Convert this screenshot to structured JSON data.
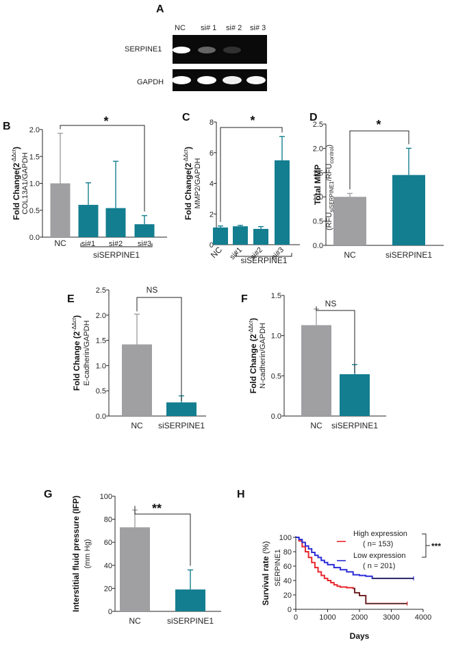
{
  "colors": {
    "gray": "#a0a0a3",
    "teal": "#137e8f",
    "red": "#e8252c",
    "blue": "#2a2ad8",
    "km_black": "#222222"
  },
  "panelA": {
    "label": "A",
    "lanes": [
      "NC",
      "si# 1",
      "si# 2",
      "si# 3"
    ],
    "rows": [
      "SERPINE1",
      "GAPDH"
    ],
    "band_intensity": {
      "SERPINE1": [
        1.0,
        0.55,
        0.25,
        0.0
      ],
      "GAPDH": [
        1.0,
        1.0,
        0.9,
        0.95
      ]
    }
  },
  "chart_data": [
    {
      "id": "B",
      "type": "bar",
      "label": "B",
      "categories": [
        "NC",
        "si#1",
        "si#2",
        "si#3"
      ],
      "values": [
        1.0,
        0.6,
        0.54,
        0.24
      ],
      "errors": [
        0.93,
        0.41,
        0.87,
        0.16
      ],
      "colors": [
        "gray",
        "teal",
        "teal",
        "teal"
      ],
      "ylim": [
        0,
        2.0
      ],
      "yticks": [
        "0.0",
        "0.5",
        "1.0",
        "1.5",
        "2.0"
      ],
      "ylabel_line1": "Fold Change(2",
      "ylabel_sup": "-ΔΔct",
      "ylabel_line1_end": ")",
      "ylabel_line2": "COL13A1/GAPDH",
      "group_label": "siSERPINE1",
      "significance": "*"
    },
    {
      "id": "C",
      "type": "bar",
      "label": "C",
      "categories": [
        "NC",
        "si#1",
        "si#2",
        "si#3"
      ],
      "values": [
        1.12,
        1.2,
        1.03,
        5.5
      ],
      "errors": [
        0.1,
        0.06,
        0.15,
        1.55
      ],
      "colors": [
        "teal",
        "teal",
        "teal",
        "teal"
      ],
      "ylim": [
        0,
        8
      ],
      "yticks": [
        "0",
        "2",
        "4",
        "6",
        "8"
      ],
      "ylabel_line1": "Fold Change(2",
      "ylabel_sup": "-ΔΔct",
      "ylabel_line1_end": ")",
      "ylabel_line2": "MMP2/GAPDH",
      "group_label": "siSERPINE1",
      "significance": "*"
    },
    {
      "id": "D",
      "type": "bar",
      "label": "D",
      "categories": [
        "NC",
        "siSERPINE1"
      ],
      "values": [
        1.0,
        1.45
      ],
      "errors": [
        0.07,
        0.55
      ],
      "colors": [
        "gray",
        "teal"
      ],
      "ylim": [
        0,
        2.5
      ],
      "yticks": [
        "0.0",
        "0.5",
        "1.0",
        "1.5",
        "2.0",
        "2.5"
      ],
      "ylabel_title": "Total MMP",
      "ylabel_line2": "(RFU",
      "ylabel_sub1": "siSERPINE1",
      "ylabel_mid": "/RFU",
      "ylabel_sub2": "control",
      "ylabel_end": ")",
      "significance": "*"
    },
    {
      "id": "E",
      "type": "bar",
      "label": "E",
      "categories": [
        "NC",
        "siSERPINE1"
      ],
      "values": [
        1.42,
        0.27
      ],
      "errors": [
        0.6,
        0.13
      ],
      "colors": [
        "gray",
        "teal"
      ],
      "ylim": [
        0,
        2.5
      ],
      "yticks": [
        "0.0",
        "0.5",
        "1.0",
        "1.5",
        "2.0",
        "2.5"
      ],
      "ylabel_line1": "Fold Change (2",
      "ylabel_sup": "-ΔΔct",
      "ylabel_line1_end": ")",
      "ylabel_line2": "E-cadherin/GAPDH",
      "significance": "NS"
    },
    {
      "id": "F",
      "type": "bar",
      "label": "F",
      "categories": [
        "NC",
        "siSERPINE1"
      ],
      "values": [
        1.13,
        0.52
      ],
      "errors": [
        0.2,
        0.12
      ],
      "colors": [
        "gray",
        "teal"
      ],
      "ylim": [
        0,
        1.5
      ],
      "yticks": [
        "0.0",
        "0.5",
        "1.0",
        "1.5"
      ],
      "ylabel_line1": "Fold Change (2",
      "ylabel_sup": "-ΔΔct",
      "ylabel_line1_end": ")",
      "ylabel_line2": "N-cadherin/GAPDH",
      "significance": "NS"
    },
    {
      "id": "G",
      "type": "bar",
      "label": "G",
      "categories": [
        "NC",
        "siSERPINE1"
      ],
      "values": [
        73,
        19
      ],
      "errors": [
        15,
        17
      ],
      "colors": [
        "gray",
        "teal"
      ],
      "ylim": [
        0,
        100
      ],
      "yticks": [
        "0",
        "20",
        "40",
        "60",
        "80",
        "100"
      ],
      "ylabel_line1": "Interstitial fluid pressure (IFP)",
      "ylabel_line2": "(mm Hg)",
      "significance": "**"
    },
    {
      "id": "H",
      "type": "line",
      "label": "H",
      "title": "",
      "xlabel": "Days",
      "ylabel_line1": "Survival rate",
      "ylabel_unit": "(%)",
      "ylabel_line2": "SERPINE1",
      "xlim": [
        0,
        4000
      ],
      "ylim": [
        0,
        100
      ],
      "xticks": [
        "0",
        "1000",
        "2000",
        "3000",
        "4000"
      ],
      "yticks": [
        "0",
        "20",
        "40",
        "60",
        "80",
        "100"
      ],
      "series": [
        {
          "name": "High expression",
          "n_label": "( n= 153)",
          "color": "red",
          "x": [
            0,
            100,
            200,
            300,
            400,
            500,
            600,
            700,
            800,
            900,
            1000,
            1100,
            1200,
            1300,
            1400,
            1500,
            1600,
            1700,
            1800,
            1850,
            2000,
            2200,
            2300,
            3000,
            3500
          ],
          "y": [
            100,
            95,
            87,
            80,
            72,
            65,
            58,
            52,
            47,
            43,
            40,
            37,
            34,
            32,
            31,
            31,
            30,
            30,
            29,
            23,
            19,
            8,
            8,
            8,
            8
          ]
        },
        {
          "name": "Low expression",
          "n_label": "( n = 201)",
          "color": "blue",
          "x": [
            0,
            100,
            200,
            300,
            400,
            500,
            600,
            700,
            800,
            900,
            1000,
            1200,
            1400,
            1600,
            1800,
            2000,
            2200,
            2400,
            2600,
            2800,
            3000,
            3200,
            3400,
            3700
          ],
          "y": [
            100,
            97,
            93,
            88,
            84,
            79,
            75,
            72,
            68,
            65,
            62,
            58,
            55,
            52,
            48,
            47,
            46,
            43,
            43,
            43,
            43,
            43,
            43,
            43
          ]
        }
      ],
      "significance": "***"
    }
  ]
}
